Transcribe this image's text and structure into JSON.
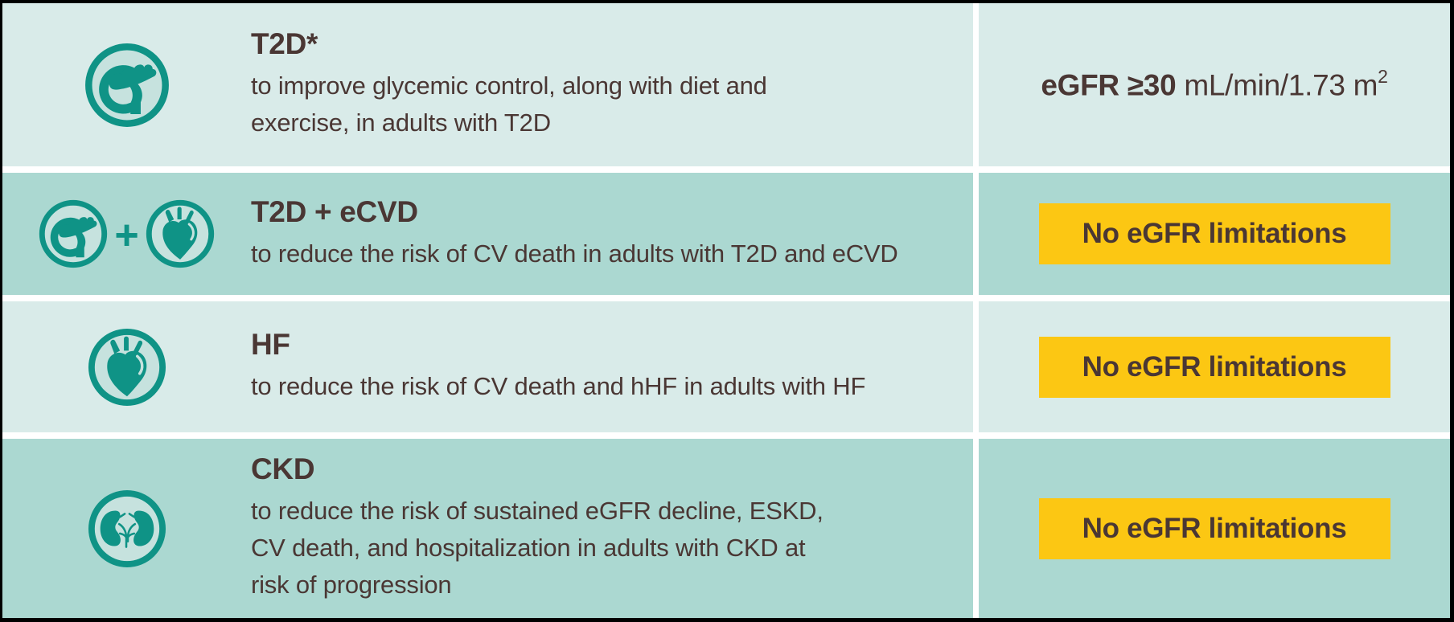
{
  "colors": {
    "frame_background": "#000000",
    "divider_white": "#ffffff",
    "row_light": "#d9ebe9",
    "row_medium": "#abd8d1",
    "teal_icon": "#0f9386",
    "icon_inner_fill": "#c6e2de",
    "badge_yellow": "#fcc713",
    "text_dark_brown": "#4a3734"
  },
  "rows": [
    {
      "id": "t2d",
      "icons": [
        "pancreas"
      ],
      "icon_size": 106,
      "title": "T2D*",
      "description_lines": [
        "to improve glycemic control, along with diet and",
        "exercise, in adults with T2D"
      ],
      "egfr": {
        "type": "text",
        "bold": "eGFR ≥30",
        "regular": " mL/min/1.73 m",
        "superscript": "2"
      }
    },
    {
      "id": "t2d-ecvd",
      "icons": [
        "pancreas",
        "heart"
      ],
      "plus_sign": "+",
      "icon_size": 86,
      "title": "T2D + eCVD",
      "description_lines": [
        "to reduce the risk of CV death in adults with T2D and eCVD"
      ],
      "egfr": {
        "type": "badge",
        "label": "No eGFR limitations"
      }
    },
    {
      "id": "hf",
      "icons": [
        "heart"
      ],
      "icon_size": 98,
      "title": "HF",
      "description_lines": [
        "to reduce the risk of CV death and hHF in adults with HF"
      ],
      "egfr": {
        "type": "badge",
        "label": "No eGFR limitations"
      }
    },
    {
      "id": "ckd",
      "icons": [
        "kidneys"
      ],
      "icon_size": 98,
      "title": "CKD",
      "description_lines": [
        "to reduce the risk of sustained eGFR decline, ESKD,",
        "CV death, and hospitalization in adults with CKD at",
        "risk of progression"
      ],
      "egfr": {
        "type": "badge",
        "label": "No eGFR limitations"
      }
    }
  ]
}
